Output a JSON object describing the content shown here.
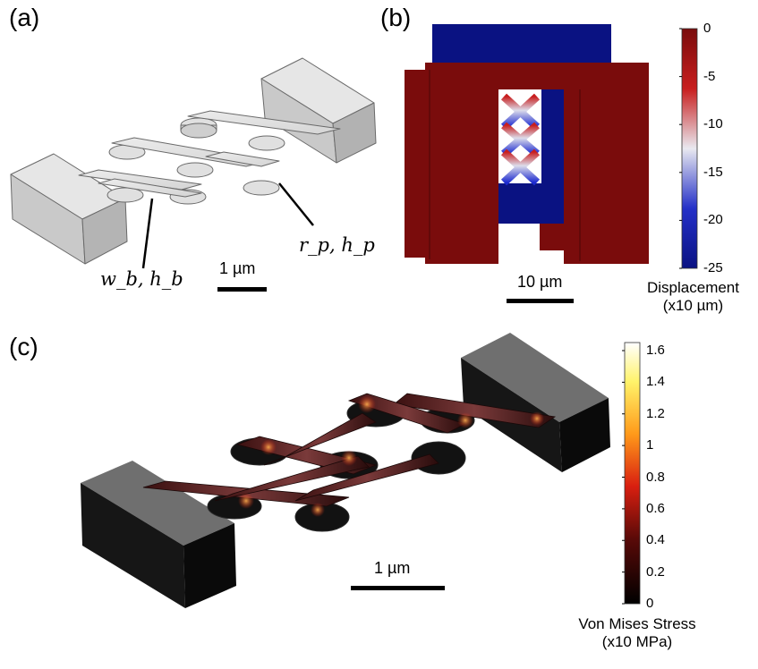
{
  "figure": {
    "panels": {
      "a": {
        "label": "(a)",
        "beam_label": "w_b, h_b",
        "pillar_label": "r_p, h_p",
        "scale_bar": "1 µm"
      },
      "b": {
        "label": "(b)",
        "scale_bar": "10 µm",
        "colorbar": {
          "title_line1": "Displacement",
          "title_line2": "(x10 µm)",
          "ticks": [
            "0",
            "-5",
            "-10",
            "-15",
            "-20",
            "-25"
          ],
          "colors": [
            "#7a0c0c",
            "#c81e1e",
            "#e9e9f0",
            "#2430c8",
            "#0a1282"
          ]
        }
      },
      "c": {
        "label": "(c)",
        "scale_bar": "1 µm",
        "colorbar": {
          "title_line1": "Von Mises Stress",
          "title_line2": "(x10 MPa)",
          "ticks": [
            "1.6",
            "1.4",
            "1.2",
            "1",
            "0.8",
            "0.6",
            "0.4",
            "0.2",
            "0"
          ],
          "colors": [
            "#ffffff",
            "#fff36a",
            "#ff9a1a",
            "#d91f10",
            "#000000"
          ]
        }
      }
    }
  }
}
